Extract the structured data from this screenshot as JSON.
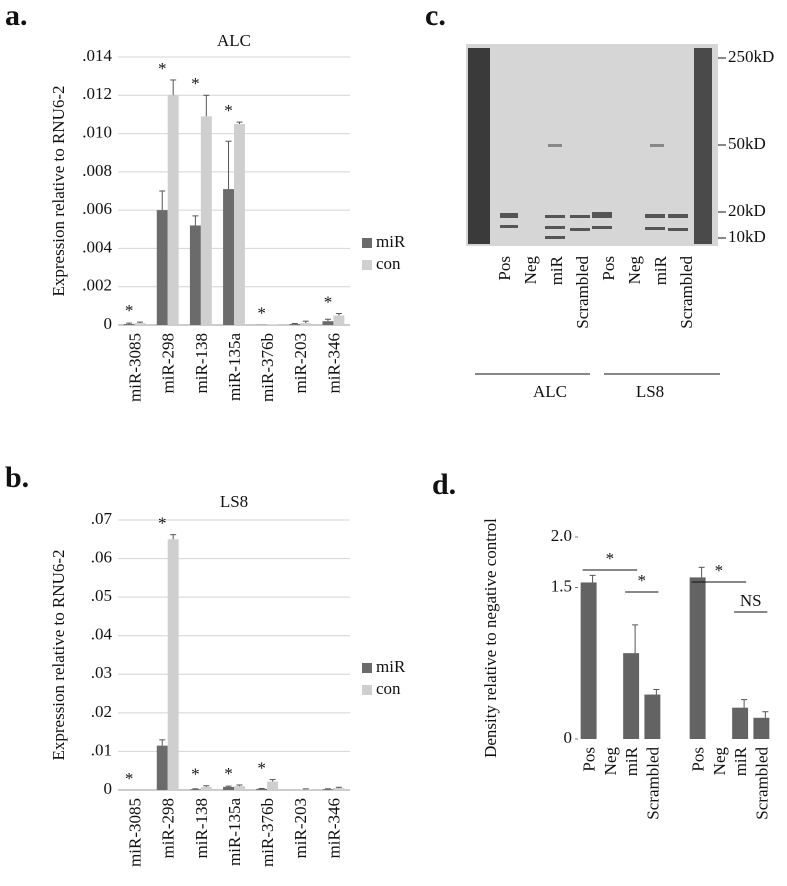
{
  "chart_data": [
    {
      "type": "bar",
      "panel_label": "a.",
      "title": "ALC",
      "y_label": "Expression relative to RNU6-2",
      "categories": [
        "miR-3085",
        "miR-298",
        "miR-138",
        "miR-135a",
        "miR-376b",
        "miR-203",
        "miR-346"
      ],
      "series": [
        {
          "name": "miR",
          "color": "#6b6b6b",
          "values": [
            5e-05,
            0.006,
            0.0052,
            0.0071,
            2e-05,
            5e-05,
            0.0002
          ],
          "errors": [
            5e-05,
            0.001,
            0.0005,
            0.0025,
            0,
            3e-05,
            0.0001
          ]
        },
        {
          "name": "con",
          "color": "#cfcfcf",
          "values": [
            0.0001,
            0.012,
            0.0109,
            0.0105,
            2e-05,
            0.0001,
            0.0005
          ],
          "errors": [
            5e-05,
            0.0008,
            0.0011,
            0.0001,
            0,
            0.0001,
            0.0001
          ]
        }
      ],
      "markers": [
        "*",
        "*",
        "*",
        "*",
        "*",
        null,
        "*"
      ],
      "ylim": [
        0,
        0.014
      ],
      "yticks": [
        0,
        {
          "value": 0.002,
          "label": ".002"
        },
        {
          "value": 0.004,
          "label": ".004"
        },
        {
          "value": 0.006,
          "label": ".006"
        },
        {
          "value": 0.008,
          "label": ".008"
        },
        {
          "value": 0.01,
          "label": ".010"
        },
        {
          "value": 0.012,
          "label": ".012"
        },
        {
          "value": 0.014,
          "label": ".014"
        }
      ],
      "grid": true
    },
    {
      "type": "bar",
      "panel_label": "b.",
      "title": "LS8",
      "y_label": "Expression relative to RNU6-2",
      "categories": [
        "miR-3085",
        "miR-298",
        "miR-138",
        "miR-135a",
        "miR-376b",
        "miR-203",
        "miR-346"
      ],
      "series": [
        {
          "name": "miR",
          "color": "#6b6b6b",
          "values": [
            0,
            0.0115,
            0.0002,
            0.0008,
            0.0003,
            0,
            0.0002
          ],
          "errors": [
            0,
            0.0015,
            0.0001,
            0.0002,
            0.0001,
            0,
            0.0001
          ]
        },
        {
          "name": "con",
          "color": "#cfcfcf",
          "values": [
            0,
            0.065,
            0.0008,
            0.001,
            0.0022,
            0.0002,
            0.0005
          ],
          "errors": [
            0,
            0.0012,
            0.0003,
            0.0003,
            0.0005,
            0.0001,
            0.0002
          ]
        }
      ],
      "markers": [
        "*",
        "*",
        "*",
        "*",
        "*",
        null,
        null
      ],
      "ylim": [
        0,
        0.07
      ],
      "yticks": [
        0,
        {
          "value": 0.01,
          "label": ".01"
        },
        {
          "value": 0.02,
          "label": ".02"
        },
        {
          "value": 0.03,
          "label": ".03"
        },
        {
          "value": 0.04,
          "label": ".04"
        },
        {
          "value": 0.05,
          "label": ".05"
        },
        {
          "value": 0.06,
          "label": ".06"
        },
        {
          "value": 0.07,
          "label": ".07"
        }
      ],
      "grid": true
    },
    {
      "type": "bar",
      "panel_label": "d.",
      "y_label": "Density relative to negative control",
      "categories": [
        "Pos",
        "Neg",
        "miR",
        "Scrambled",
        "Pos",
        "Neg",
        "miR",
        "Scrambled"
      ],
      "values": [
        1.55,
        null,
        0.85,
        0.44,
        1.6,
        null,
        0.31,
        0.21
      ],
      "errors": [
        0.07,
        null,
        0.28,
        0.05,
        0.1,
        null,
        0.08,
        0.06
      ],
      "color": "#636363",
      "comparisons": [
        "*",
        "*",
        "*",
        "NS"
      ],
      "ylim": [
        0,
        2.0
      ],
      "yticks": [
        0,
        1.5,
        {
          "value": 2.0,
          "label": "2.0"
        }
      ],
      "grid": false
    }
  ],
  "gel": {
    "panel_label": "c.",
    "markers": [
      "250kD",
      "50kD",
      "20kD",
      "10kD"
    ],
    "lanes": [
      "Pos",
      "Neg",
      "miR",
      "Scrambled",
      "Pos",
      "Neg",
      "miR",
      "Scrambled"
    ],
    "groups": [
      "ALC",
      "LS8"
    ]
  }
}
